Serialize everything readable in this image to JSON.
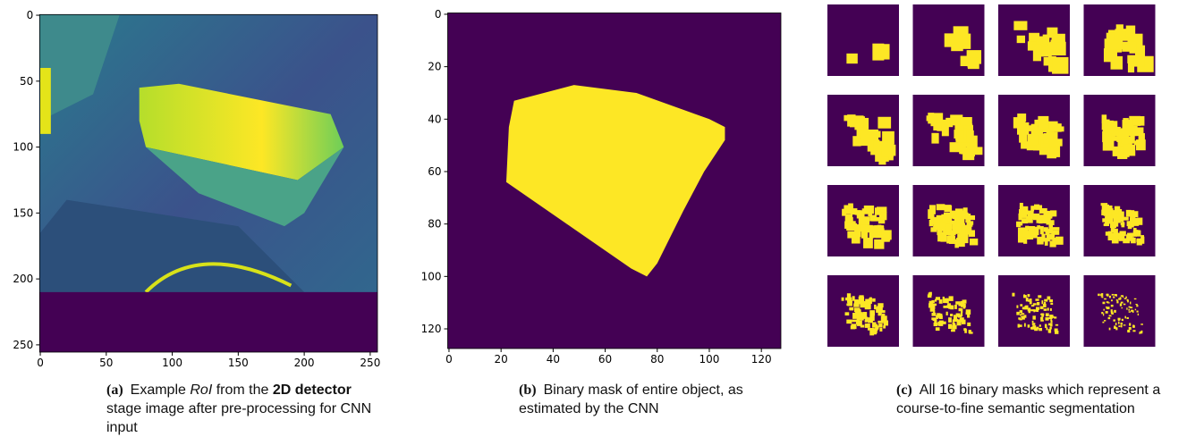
{
  "panels": [
    {
      "label": "(a)",
      "caption": [
        {
          "text": "Example "
        },
        {
          "text": "RoI",
          "style": "italic"
        },
        {
          "text": " from the "
        },
        {
          "text": "2D detector",
          "style": "bold"
        },
        {
          "text": " stage image after pre-processing for CNN input"
        }
      ],
      "xlim": [
        -0.5,
        255.5
      ],
      "ylim": [
        -0.5,
        255.5
      ],
      "xticks": [
        0,
        50,
        100,
        150,
        200,
        250
      ],
      "yticks": [
        0,
        50,
        100,
        150,
        200,
        250
      ]
    },
    {
      "label": "(b)",
      "caption": [
        {
          "text": "Binary mask of entire object, as estimated by the CNN"
        }
      ],
      "xlim": [
        -0.5,
        127.5
      ],
      "ylim": [
        -0.5,
        127.5
      ],
      "xticks": [
        0,
        20,
        40,
        60,
        80,
        100,
        120
      ],
      "yticks": [
        0,
        20,
        40,
        60,
        80,
        100,
        120
      ]
    },
    {
      "label": "(c)",
      "caption": [
        {
          "text": "All 16 binary masks which represent a course-to-fine semantic segmentation"
        }
      ]
    }
  ]
}
